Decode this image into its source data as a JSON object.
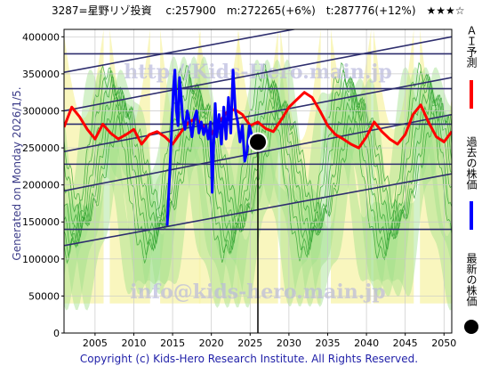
{
  "header": {
    "title": "3287=星野リゾ投資  　c:257900　m:272265(+6%)　t:287776(+12%)　★★★☆"
  },
  "side_text": "Generated on Monday 2026/1/5.",
  "watermark": {
    "url": "http://Kids-Hero.main.jp",
    "email": "info@kids-hero.main.jp"
  },
  "footer": {
    "copyright": "Copyright (c) Kids-Hero Research Institute. All Rights Reserved."
  },
  "legend": [
    {
      "label": "ＡＩ予測",
      "color": "#ff0000"
    },
    {
      "label": "過去の株価",
      "color": "#0000ff"
    },
    {
      "label": "最新の株価",
      "color": "#000000"
    }
  ],
  "chart_data": {
    "type": "line",
    "xlim": [
      2001,
      2051
    ],
    "ylim": [
      0,
      410000
    ],
    "x_ticks": [
      2005,
      2010,
      2015,
      2020,
      2025,
      2030,
      2035,
      2040,
      2045,
      2050
    ],
    "y_ticks": [
      0,
      50000,
      100000,
      150000,
      200000,
      250000,
      300000,
      350000,
      400000
    ],
    "y_tick_labels": [
      "0",
      "50000",
      "100000",
      "150000",
      "200000",
      "250000",
      "300000",
      "350000",
      "400000"
    ],
    "latest": {
      "x": 2026.0,
      "y": 257900
    },
    "horizontal_lines": [
      140000,
      228000,
      282000,
      330000,
      377000
    ],
    "trend_lines": [
      {
        "x": [
          2001,
          2051
        ],
        "y": [
          118000,
          215000
        ]
      },
      {
        "x": [
          2001,
          2051
        ],
        "y": [
          192000,
          295000
        ]
      },
      {
        "x": [
          2001,
          2051
        ],
        "y": [
          245000,
          345000
        ]
      },
      {
        "x": [
          2001,
          2051
        ],
        "y": [
          300000,
          400000
        ]
      },
      {
        "x": [
          2001,
          2051
        ],
        "y": [
          352000,
          450000
        ]
      }
    ],
    "series": [
      {
        "name": "ＡＩ予測",
        "color": "#ff0000",
        "x": [
          2001,
          2002,
          2003,
          2004,
          2005,
          2006,
          2007,
          2008,
          2009,
          2010,
          2011,
          2012,
          2013,
          2014,
          2015,
          2016,
          2017,
          2018,
          2019,
          2020,
          2021,
          2022,
          2023,
          2024,
          2025,
          2026,
          2027,
          2028,
          2029,
          2030,
          2031,
          2032,
          2033,
          2034,
          2035,
          2036,
          2037,
          2038,
          2039,
          2040,
          2041,
          2042,
          2043,
          2044,
          2045,
          2046,
          2047,
          2048,
          2049,
          2050,
          2051
        ],
        "y": [
          278000,
          305000,
          292000,
          275000,
          262000,
          282000,
          270000,
          262000,
          268000,
          275000,
          255000,
          268000,
          272000,
          265000,
          255000,
          270000,
          284000,
          290000,
          278000,
          268000,
          285000,
          298000,
          302000,
          295000,
          280000,
          285000,
          276000,
          272000,
          288000,
          305000,
          315000,
          325000,
          318000,
          300000,
          280000,
          268000,
          262000,
          255000,
          250000,
          265000,
          285000,
          272000,
          262000,
          255000,
          268000,
          295000,
          308000,
          285000,
          265000,
          258000,
          272000
        ]
      },
      {
        "name": "過去の株価",
        "color": "#0000ff",
        "x": [
          2014.3,
          2014.6,
          2014.9,
          2015.1,
          2015.3,
          2015.5,
          2015.7,
          2015.9,
          2016.1,
          2016.3,
          2016.6,
          2016.9,
          2017.2,
          2017.5,
          2017.8,
          2018.1,
          2018.4,
          2018.7,
          2019.0,
          2019.3,
          2019.6,
          2019.9,
          2020.1,
          2020.3,
          2020.5,
          2020.7,
          2021.0,
          2021.3,
          2021.6,
          2021.9,
          2022.2,
          2022.5,
          2022.8,
          2023.1,
          2023.4,
          2023.7,
          2024.0,
          2024.3,
          2024.6,
          2024.9,
          2025.2,
          2025.5,
          2025.8,
          2026.0
        ],
        "y": [
          145000,
          210000,
          280000,
          330000,
          355000,
          300000,
          280000,
          345000,
          320000,
          290000,
          275000,
          300000,
          285000,
          265000,
          290000,
          300000,
          270000,
          285000,
          268000,
          280000,
          262000,
          285000,
          190000,
          255000,
          310000,
          265000,
          295000,
          255000,
          305000,
          262000,
          318000,
          270000,
          355000,
          300000,
          285000,
          258000,
          280000,
          232000,
          245000,
          280000,
          268000,
          262000,
          258000,
          257900
        ]
      }
    ]
  }
}
